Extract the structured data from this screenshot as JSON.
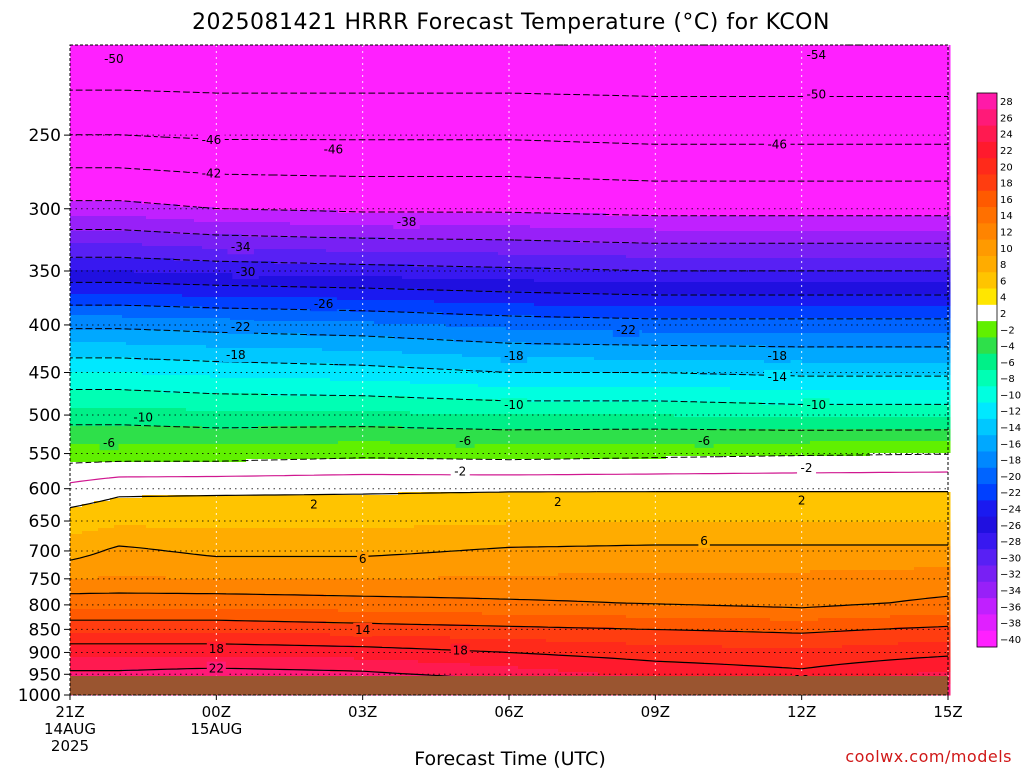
{
  "title": "2025081421 HRRR Forecast Temperature (°C) for KCON",
  "credit": "coolwx.com/models",
  "colors": {
    "credit": "#d01818",
    "ground": "#9a5530",
    "freezing_contour": "#d01890"
  },
  "chart_data": {
    "type": "heatmap",
    "title": "2025081421 HRRR Forecast Temperature (°C) for KCON",
    "xlabel": "Forecast Time (UTC)",
    "ylabel": "",
    "x_ticks": [
      {
        "hour": 0,
        "lines": [
          "21Z",
          "14AUG",
          "2025"
        ]
      },
      {
        "hour": 3,
        "lines": [
          "00Z",
          "15AUG"
        ]
      },
      {
        "hour": 6,
        "lines": [
          "03Z"
        ]
      },
      {
        "hour": 9,
        "lines": [
          "06Z"
        ]
      },
      {
        "hour": 12,
        "lines": [
          "09Z"
        ]
      },
      {
        "hour": 15,
        "lines": [
          "12Z"
        ]
      },
      {
        "hour": 18,
        "lines": [
          "15Z"
        ]
      }
    ],
    "xlim": [
      0,
      18
    ],
    "y_ticks": [
      250,
      300,
      350,
      400,
      450,
      500,
      550,
      600,
      650,
      700,
      750,
      800,
      850,
      900,
      950,
      1000
    ],
    "ylim": [
      1000,
      200
    ],
    "y_scale": "log",
    "grid": true,
    "colorbar_labels": [
      28,
      26,
      24,
      22,
      20,
      18,
      16,
      14,
      12,
      10,
      8,
      6,
      4,
      2,
      -2,
      -4,
      -6,
      -8,
      -10,
      -12,
      -14,
      -16,
      -18,
      -20,
      -22,
      -24,
      -26,
      -28,
      -30,
      -32,
      -34,
      -36,
      -38,
      -40
    ],
    "profiles": [
      {
        "hour": 0,
        "p": [
          1000,
          950,
          900,
          850,
          800,
          750,
          700,
          650,
          600,
          550,
          500,
          450,
          400,
          350,
          300,
          250,
          200
        ],
        "t": [
          26,
          22.5,
          19.5,
          15.5,
          11.5,
          8,
          5,
          3,
          0.6,
          -3,
          -7,
          -12,
          -18.5,
          -28,
          -37,
          -46,
          -54
        ]
      },
      {
        "hour": 1,
        "p": [
          1000,
          950,
          900,
          850,
          800,
          750,
          700,
          650,
          600,
          550,
          500,
          450,
          400,
          350,
          300,
          250,
          200
        ],
        "t": [
          26,
          22.5,
          19.5,
          15.5,
          11.5,
          8.2,
          6.5,
          3.5,
          1.5,
          -3,
          -7,
          -12,
          -18.5,
          -28,
          -37,
          -46,
          -54
        ]
      },
      {
        "hour": 3,
        "p": [
          1000,
          950,
          900,
          850,
          800,
          750,
          700,
          650,
          600,
          550,
          500,
          450,
          400,
          350,
          300,
          250,
          200
        ],
        "t": [
          27,
          23,
          19.5,
          15.5,
          11.5,
          8,
          5.5,
          3.5,
          1.6,
          -3,
          -7.5,
          -12.5,
          -19,
          -28.5,
          -38,
          -46.5,
          -54
        ]
      },
      {
        "hour": 6,
        "p": [
          1000,
          950,
          900,
          850,
          800,
          750,
          700,
          650,
          600,
          550,
          500,
          450,
          400,
          350,
          300,
          250,
          200
        ],
        "t": [
          26.5,
          22.5,
          19,
          15,
          11,
          8,
          5.5,
          3.5,
          1.7,
          -2.5,
          -7.5,
          -13,
          -19.5,
          -29,
          -38.5,
          -46.5,
          -54
        ]
      },
      {
        "hour": 9,
        "p": [
          1000,
          950,
          900,
          850,
          800,
          750,
          700,
          650,
          600,
          550,
          500,
          450,
          400,
          350,
          300,
          250,
          200
        ],
        "t": [
          25,
          21,
          18,
          14.5,
          10.5,
          8.2,
          6.3,
          3.8,
          1.8,
          -2.8,
          -8,
          -14,
          -20.5,
          -29.5,
          -38.5,
          -46.5,
          -54
        ]
      },
      {
        "hour": 12,
        "p": [
          1000,
          950,
          900,
          850,
          800,
          750,
          700,
          650,
          600,
          550,
          500,
          450,
          400,
          350,
          300,
          250,
          200
        ],
        "t": [
          22.5,
          19.5,
          17,
          14,
          10,
          8.5,
          6.5,
          4,
          1.8,
          -2.5,
          -8,
          -14,
          -21,
          -30,
          -39,
          -47,
          -54
        ]
      },
      {
        "hour": 15,
        "p": [
          1000,
          950,
          900,
          850,
          800,
          750,
          700,
          650,
          600,
          550,
          500,
          450,
          400,
          350,
          300,
          250,
          200
        ],
        "t": [
          21,
          18.5,
          16.5,
          13.5,
          9.5,
          8.5,
          6.5,
          4,
          1.8,
          -2.2,
          -8.5,
          -14.5,
          -21,
          -30,
          -39,
          -47,
          -54
        ]
      },
      {
        "hour": 18,
        "p": [
          1000,
          950,
          900,
          850,
          800,
          750,
          700,
          650,
          600,
          550,
          500,
          450,
          400,
          350,
          300,
          250,
          200
        ],
        "t": [
          23.5,
          20.5,
          17.5,
          14.5,
          10.5,
          9,
          6.5,
          4,
          1.8,
          -2,
          -8.5,
          -14.5,
          -21,
          -30,
          -39,
          -47,
          -54
        ]
      }
    ],
    "contour_labels": [
      {
        "hour": 0.9,
        "p": 207,
        "text": "-50"
      },
      {
        "hour": 2.9,
        "p": 253,
        "text": "-46"
      },
      {
        "hour": 2.9,
        "p": 275,
        "text": "-42"
      },
      {
        "hour": 3.5,
        "p": 330,
        "text": "-34"
      },
      {
        "hour": 3.6,
        "p": 351,
        "text": "-30"
      },
      {
        "hour": 5.2,
        "p": 380,
        "text": "-26"
      },
      {
        "hour": 3.5,
        "p": 402,
        "text": "-22"
      },
      {
        "hour": 3.4,
        "p": 431,
        "text": "-18"
      },
      {
        "hour": 1.5,
        "p": 503,
        "text": "-10"
      },
      {
        "hour": 0.8,
        "p": 536,
        "text": "-6"
      },
      {
        "hour": 5.4,
        "p": 259,
        "text": "-46"
      },
      {
        "hour": 6.9,
        "p": 310,
        "text": "-38"
      },
      {
        "hour": 9.1,
        "p": 432,
        "text": "-18"
      },
      {
        "hour": 9.1,
        "p": 488,
        "text": "-10"
      },
      {
        "hour": 8.1,
        "p": 533,
        "text": "-6"
      },
      {
        "hour": 8.0,
        "p": 575,
        "text": "-2"
      },
      {
        "hour": 11.4,
        "p": 405,
        "text": "-22"
      },
      {
        "hour": 15.3,
        "p": 205,
        "text": "-54"
      },
      {
        "hour": 15.3,
        "p": 226,
        "text": "-50"
      },
      {
        "hour": 14.5,
        "p": 256,
        "text": "-46"
      },
      {
        "hour": 14.5,
        "p": 432,
        "text": "-18"
      },
      {
        "hour": 14.5,
        "p": 455,
        "text": "-14"
      },
      {
        "hour": 15.3,
        "p": 488,
        "text": "-10"
      },
      {
        "hour": 13.0,
        "p": 533,
        "text": "-6"
      },
      {
        "hour": 15.1,
        "p": 570,
        "text": "-2"
      },
      {
        "hour": 5.0,
        "p": 624,
        "text": "2"
      },
      {
        "hour": 10.0,
        "p": 620,
        "text": "2"
      },
      {
        "hour": 15.0,
        "p": 618,
        "text": "2"
      },
      {
        "hour": 6.0,
        "p": 714,
        "text": "6"
      },
      {
        "hour": 13.0,
        "p": 683,
        "text": "6"
      },
      {
        "hour": 6.0,
        "p": 851,
        "text": "14"
      },
      {
        "hour": 3.0,
        "p": 892,
        "text": "18"
      },
      {
        "hour": 8.0,
        "p": 896,
        "text": "18"
      },
      {
        "hour": 15.0,
        "p": 963,
        "text": "18"
      },
      {
        "hour": 3.0,
        "p": 937,
        "text": "22"
      }
    ]
  }
}
